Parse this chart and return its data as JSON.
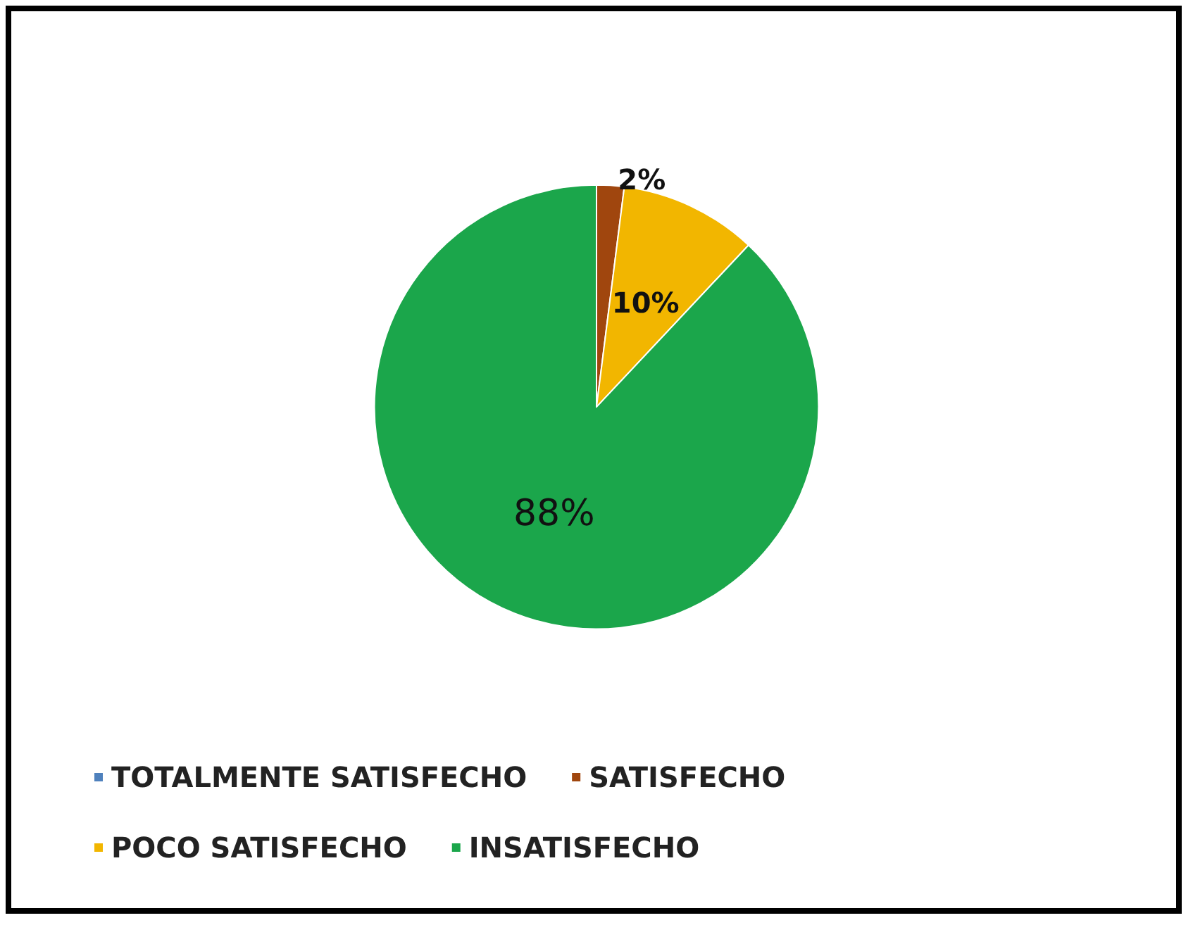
{
  "chart_data": {
    "type": "pie",
    "categories": [
      "TOTALMENTE SATISFECHO",
      "SATISFECHO",
      "POCO SATISFECHO",
      "INSATISFECHO"
    ],
    "values": [
      0,
      2,
      10,
      88
    ],
    "colors": [
      "#4f81bd",
      "#a0460e",
      "#f2b600",
      "#1ba64b"
    ],
    "value_labels": [
      null,
      "2%",
      "10%",
      "88%"
    ],
    "legend": "bottom"
  }
}
